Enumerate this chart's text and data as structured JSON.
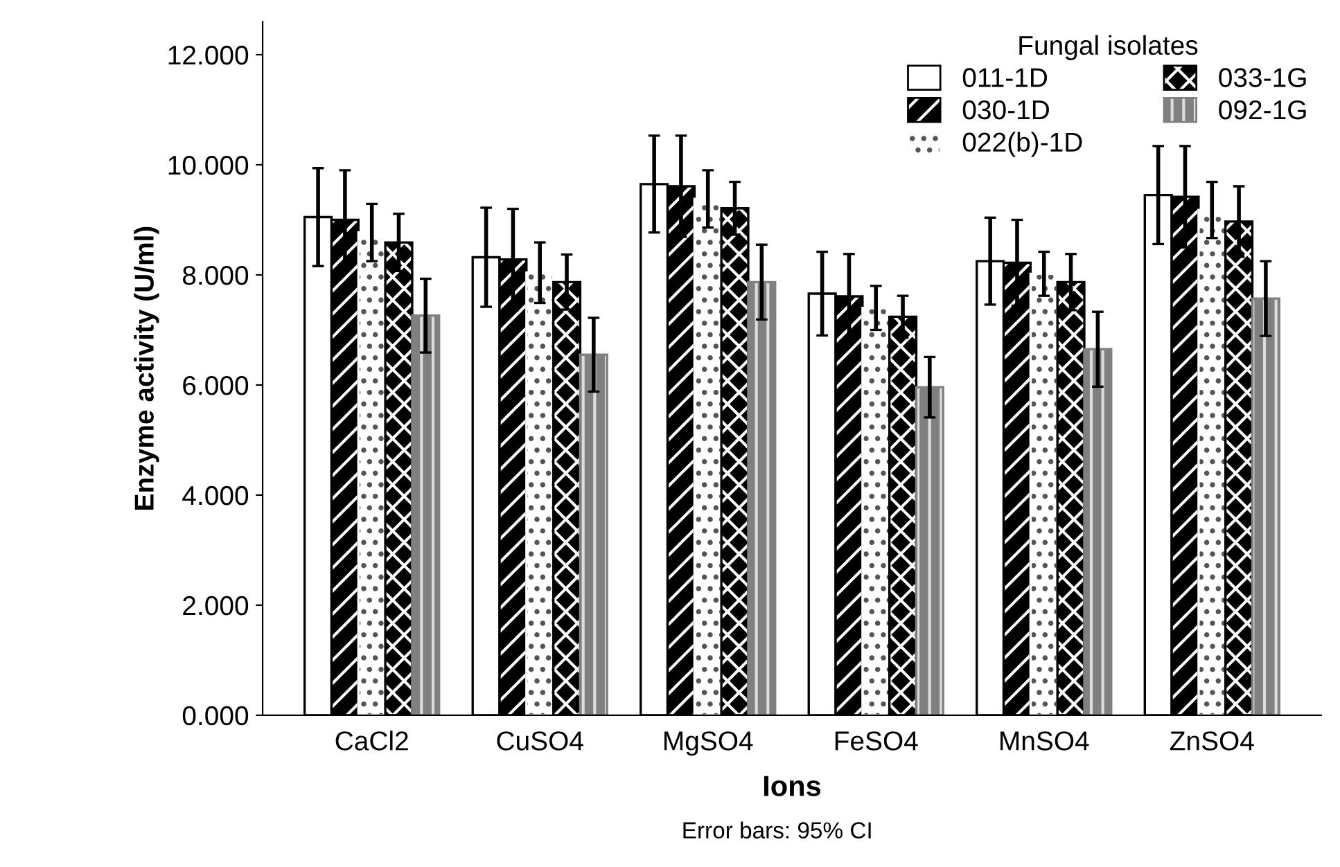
{
  "chart_data": {
    "type": "bar",
    "xlabel": "Ions",
    "ylabel": "Enzyme activity (U/ml)",
    "legend_title": "Fungal isolates",
    "legend": "top right",
    "grid": false,
    "categories": [
      "CaCl2",
      "CuSO4",
      "MgSO4",
      "FeSO4",
      "MnSO4",
      "ZnSO4"
    ],
    "series": [
      {
        "name": "011-1D",
        "color": "#ffffff",
        "values": [
          9.05,
          8.32,
          9.65,
          7.66,
          8.25,
          9.45
        ],
        "errors": [
          0.89,
          0.9,
          0.88,
          0.76,
          0.79,
          0.89
        ]
      },
      {
        "name": "030-1D",
        "color": "#000000",
        "values": [
          9.0,
          8.28,
          9.61,
          7.61,
          8.22,
          9.42
        ],
        "errors": [
          0.9,
          0.92,
          0.92,
          0.77,
          0.78,
          0.92
        ]
      },
      {
        "name": "022(b)-1D",
        "color": "#ffffff",
        "values": [
          8.77,
          8.04,
          9.38,
          7.4,
          8.02,
          9.18
        ],
        "errors": [
          0.52,
          0.55,
          0.52,
          0.4,
          0.4,
          0.51
        ]
      },
      {
        "name": "033-1G",
        "color": "#000000",
        "values": [
          8.59,
          7.87,
          9.21,
          7.24,
          7.87,
          8.97
        ],
        "errors": [
          0.52,
          0.5,
          0.48,
          0.38,
          0.51,
          0.64
        ]
      },
      {
        "name": "092-1G",
        "color": "#808080",
        "values": [
          7.26,
          6.55,
          7.87,
          5.96,
          6.65,
          7.57
        ],
        "errors": [
          0.67,
          0.67,
          0.68,
          0.55,
          0.68,
          0.68
        ]
      }
    ],
    "ylim": [
      0,
      12.6
    ],
    "yticks": [
      {
        "value": 0,
        "label": "0.000"
      },
      {
        "value": 2,
        "label": "2.000"
      },
      {
        "value": 4,
        "label": "4.000"
      },
      {
        "value": 6,
        "label": "6.000"
      },
      {
        "value": 8,
        "label": "8.000"
      },
      {
        "value": 10,
        "label": "10.000"
      },
      {
        "value": 12,
        "label": "12.000"
      }
    ],
    "annotations": [
      "Error bars: 95% CI"
    ]
  }
}
